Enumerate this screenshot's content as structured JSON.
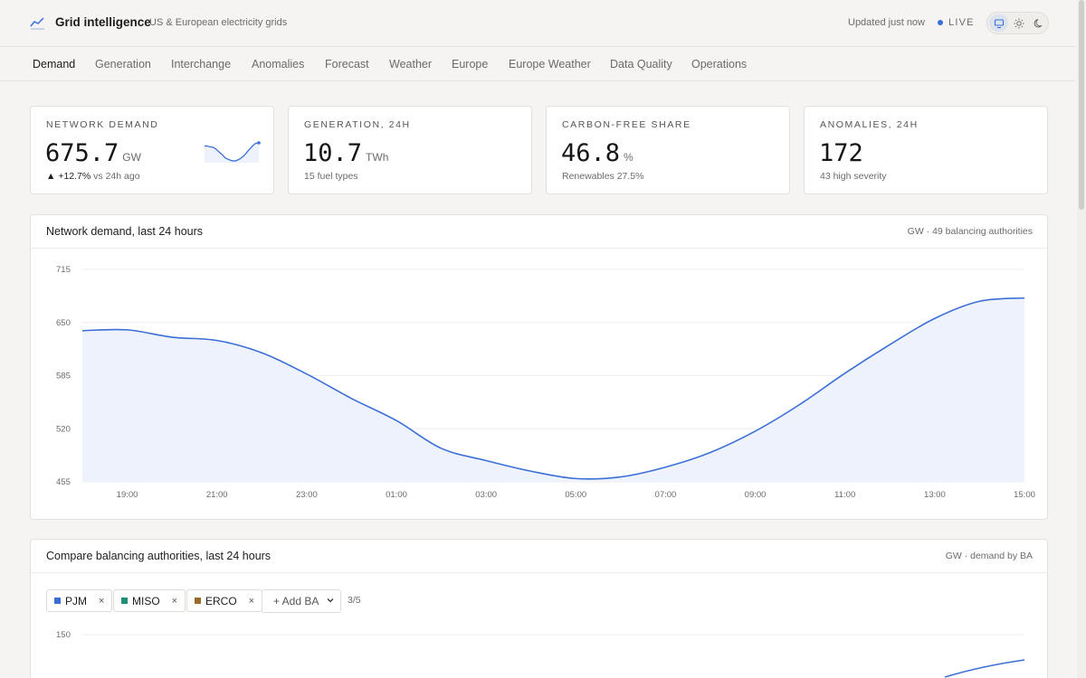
{
  "app": {
    "name": "Grid intelligence",
    "subtitle": "US & European electricity grids",
    "updated": "Updated just now",
    "live": "LIVE"
  },
  "colors": {
    "accent": "#3b6fd6",
    "pjm": "#3b6fd6",
    "miso": "#1f8f7a",
    "erco": "#9a6a28"
  },
  "icons": {
    "brand": "trend-line-icon",
    "theme_system": "monitor-icon",
    "theme_light": "sun-icon",
    "theme_dark": "moon-icon"
  },
  "tabs": [
    "Demand",
    "Generation",
    "Interchange",
    "Anomalies",
    "Forecast",
    "Weather",
    "Europe",
    "Europe Weather",
    "Data Quality",
    "Operations"
  ],
  "active_tab": "Demand",
  "kpis": [
    {
      "label": "NETWORK DEMAND",
      "value": "675.7",
      "unit": "GW",
      "arrow": "▲",
      "delta": "+12.7%",
      "sub_suffix": "vs 24h ago"
    },
    {
      "label": "GENERATION, 24H",
      "value": "10.7",
      "unit": "TWh",
      "sub": "15 fuel types"
    },
    {
      "label": "CARBON-FREE SHARE",
      "value": "46.8",
      "unit": "%",
      "sub": "Renewables 27.5%"
    },
    {
      "label": "ANOMALIES, 24H",
      "value": "172",
      "unit": "",
      "sub": "43 high severity"
    }
  ],
  "demand_panel": {
    "title": "Network demand, last 24 hours",
    "meta": "GW · 49 balancing authorities"
  },
  "compare_panel": {
    "title": "Compare balancing authorities, last 24 hours",
    "meta": "GW · demand by BA",
    "chips": [
      {
        "label": "PJM",
        "remove": "×"
      },
      {
        "label": "MISO",
        "remove": "×"
      },
      {
        "label": "ERCO",
        "remove": "×"
      }
    ],
    "add_label": "+ Add BA",
    "count": "3/5",
    "y_tick_top": "150"
  },
  "chart_data": {
    "type": "area",
    "title": "Network demand, last 24 hours",
    "xlabel": "",
    "ylabel": "",
    "unit": "GW",
    "y_ticks": [
      715,
      650,
      585,
      520,
      455
    ],
    "ylim": [
      455,
      715
    ],
    "x_ticks": [
      "19:00",
      "21:00",
      "23:00",
      "01:00",
      "03:00",
      "05:00",
      "07:00",
      "09:00",
      "11:00",
      "13:00",
      "15:00"
    ],
    "grid": true,
    "x": [
      "18:00",
      "19:00",
      "20:00",
      "21:00",
      "22:00",
      "23:00",
      "00:00",
      "01:00",
      "02:00",
      "03:00",
      "04:00",
      "05:00",
      "06:00",
      "07:00",
      "08:00",
      "09:00",
      "10:00",
      "11:00",
      "12:00",
      "13:00",
      "14:00",
      "15:00"
    ],
    "values": [
      640,
      641,
      632,
      628,
      613,
      587,
      557,
      530,
      496,
      481,
      468,
      459,
      461,
      473,
      491,
      517,
      550,
      588,
      623,
      655,
      676,
      680
    ]
  },
  "sparkline": [
    640,
    641,
    632,
    628,
    613,
    587,
    557,
    530,
    496,
    481,
    468,
    459,
    461,
    473,
    491,
    517,
    550,
    588,
    623,
    655,
    676,
    680
  ]
}
